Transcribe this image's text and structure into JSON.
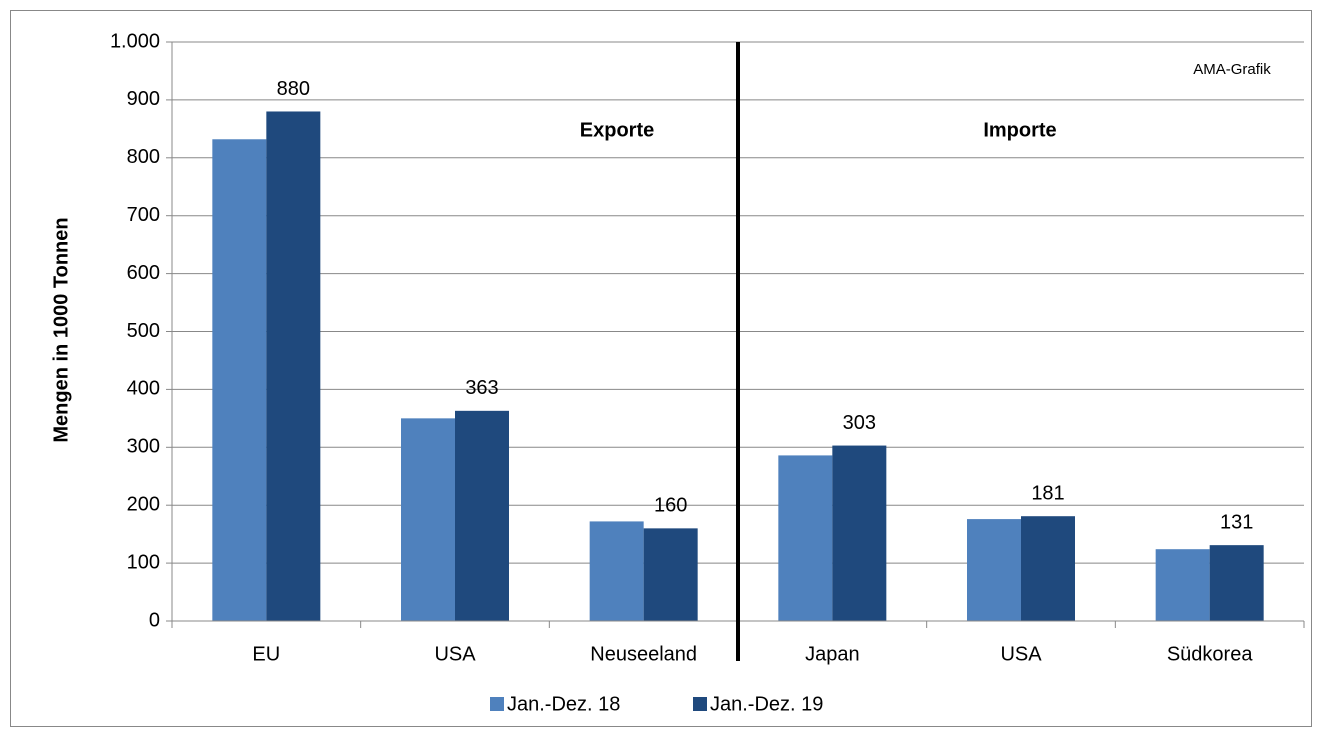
{
  "chart_data": {
    "type": "bar",
    "y_label": "Mengen in 1000 Tonnen",
    "annotations": [
      "Exporte",
      "Importe",
      "AMA-Grafik"
    ],
    "categories": [
      "EU",
      "USA",
      "Neuseeland",
      "Japan",
      "USA",
      "Südkorea"
    ],
    "series": [
      {
        "name": "Jan.-Dez. 18",
        "color": "#4f81bd",
        "values": [
          832,
          350,
          172,
          286,
          176,
          124
        ],
        "show_labels": false
      },
      {
        "name": "Jan.-Dez. 19",
        "color": "#1f497d",
        "values": [
          880,
          363,
          160,
          303,
          181,
          131
        ],
        "show_labels": true
      }
    ],
    "ylim": [
      0,
      1000
    ],
    "yticks": [
      0,
      100,
      200,
      300,
      400,
      500,
      600,
      700,
      800,
      900,
      {
        "value": 1000,
        "label": "1.000"
      }
    ],
    "grid": true
  }
}
